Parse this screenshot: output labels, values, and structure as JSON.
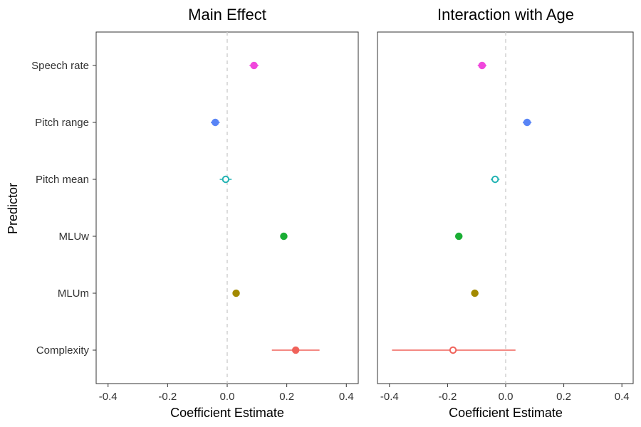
{
  "chart_data": {
    "type": "scatter",
    "subtype": "coefficient-plot",
    "ylabel": "Predictor",
    "categories": [
      "Speech rate",
      "Pitch range",
      "Pitch mean",
      "MLUw",
      "MLUm",
      "Complexity"
    ],
    "xlim": [
      -0.44,
      0.44
    ],
    "xticks": [
      -0.4,
      -0.2,
      0.0,
      0.2,
      0.4
    ],
    "xtick_labels": [
      "-0.4",
      "-0.2",
      "0.0",
      "0.2",
      "0.4"
    ],
    "panels": [
      {
        "title": "Main Effect",
        "xlabel": "Coefficient Estimate",
        "points": [
          {
            "predictor": "Speech rate",
            "estimate": 0.09,
            "low": 0.075,
            "high": 0.105,
            "color": "#F047DC",
            "filled": true
          },
          {
            "predictor": "Pitch range",
            "estimate": -0.04,
            "low": -0.055,
            "high": -0.025,
            "color": "#5884F6",
            "filled": true
          },
          {
            "predictor": "Pitch mean",
            "estimate": -0.005,
            "low": -0.025,
            "high": 0.015,
            "color": "#22B3B3",
            "filled": false
          },
          {
            "predictor": "MLUw",
            "estimate": 0.19,
            "low": 0.19,
            "high": 0.19,
            "color": "#1AAE34",
            "filled": true
          },
          {
            "predictor": "MLUm",
            "estimate": 0.03,
            "low": 0.03,
            "high": 0.03,
            "color": "#A38A00",
            "filled": true
          },
          {
            "predictor": "Complexity",
            "estimate": 0.23,
            "low": 0.15,
            "high": 0.31,
            "color": "#F0625A",
            "filled": true
          }
        ]
      },
      {
        "title": "Interaction with Age",
        "xlabel": "Coefficient Estimate",
        "points": [
          {
            "predictor": "Speech rate",
            "estimate": -0.08,
            "low": -0.095,
            "high": -0.065,
            "color": "#F047DC",
            "filled": true
          },
          {
            "predictor": "Pitch range",
            "estimate": 0.075,
            "low": 0.06,
            "high": 0.09,
            "color": "#5884F6",
            "filled": true
          },
          {
            "predictor": "Pitch mean",
            "estimate": -0.035,
            "low": -0.05,
            "high": -0.02,
            "color": "#22B3B3",
            "filled": false
          },
          {
            "predictor": "MLUw",
            "estimate": -0.16,
            "low": -0.16,
            "high": -0.16,
            "color": "#1AAE34",
            "filled": true
          },
          {
            "predictor": "MLUm",
            "estimate": -0.105,
            "low": -0.105,
            "high": -0.105,
            "color": "#A38A00",
            "filled": true
          },
          {
            "predictor": "Complexity",
            "estimate": -0.18,
            "low": -0.39,
            "high": 0.035,
            "color": "#F0625A",
            "filled": false
          }
        ]
      }
    ]
  }
}
